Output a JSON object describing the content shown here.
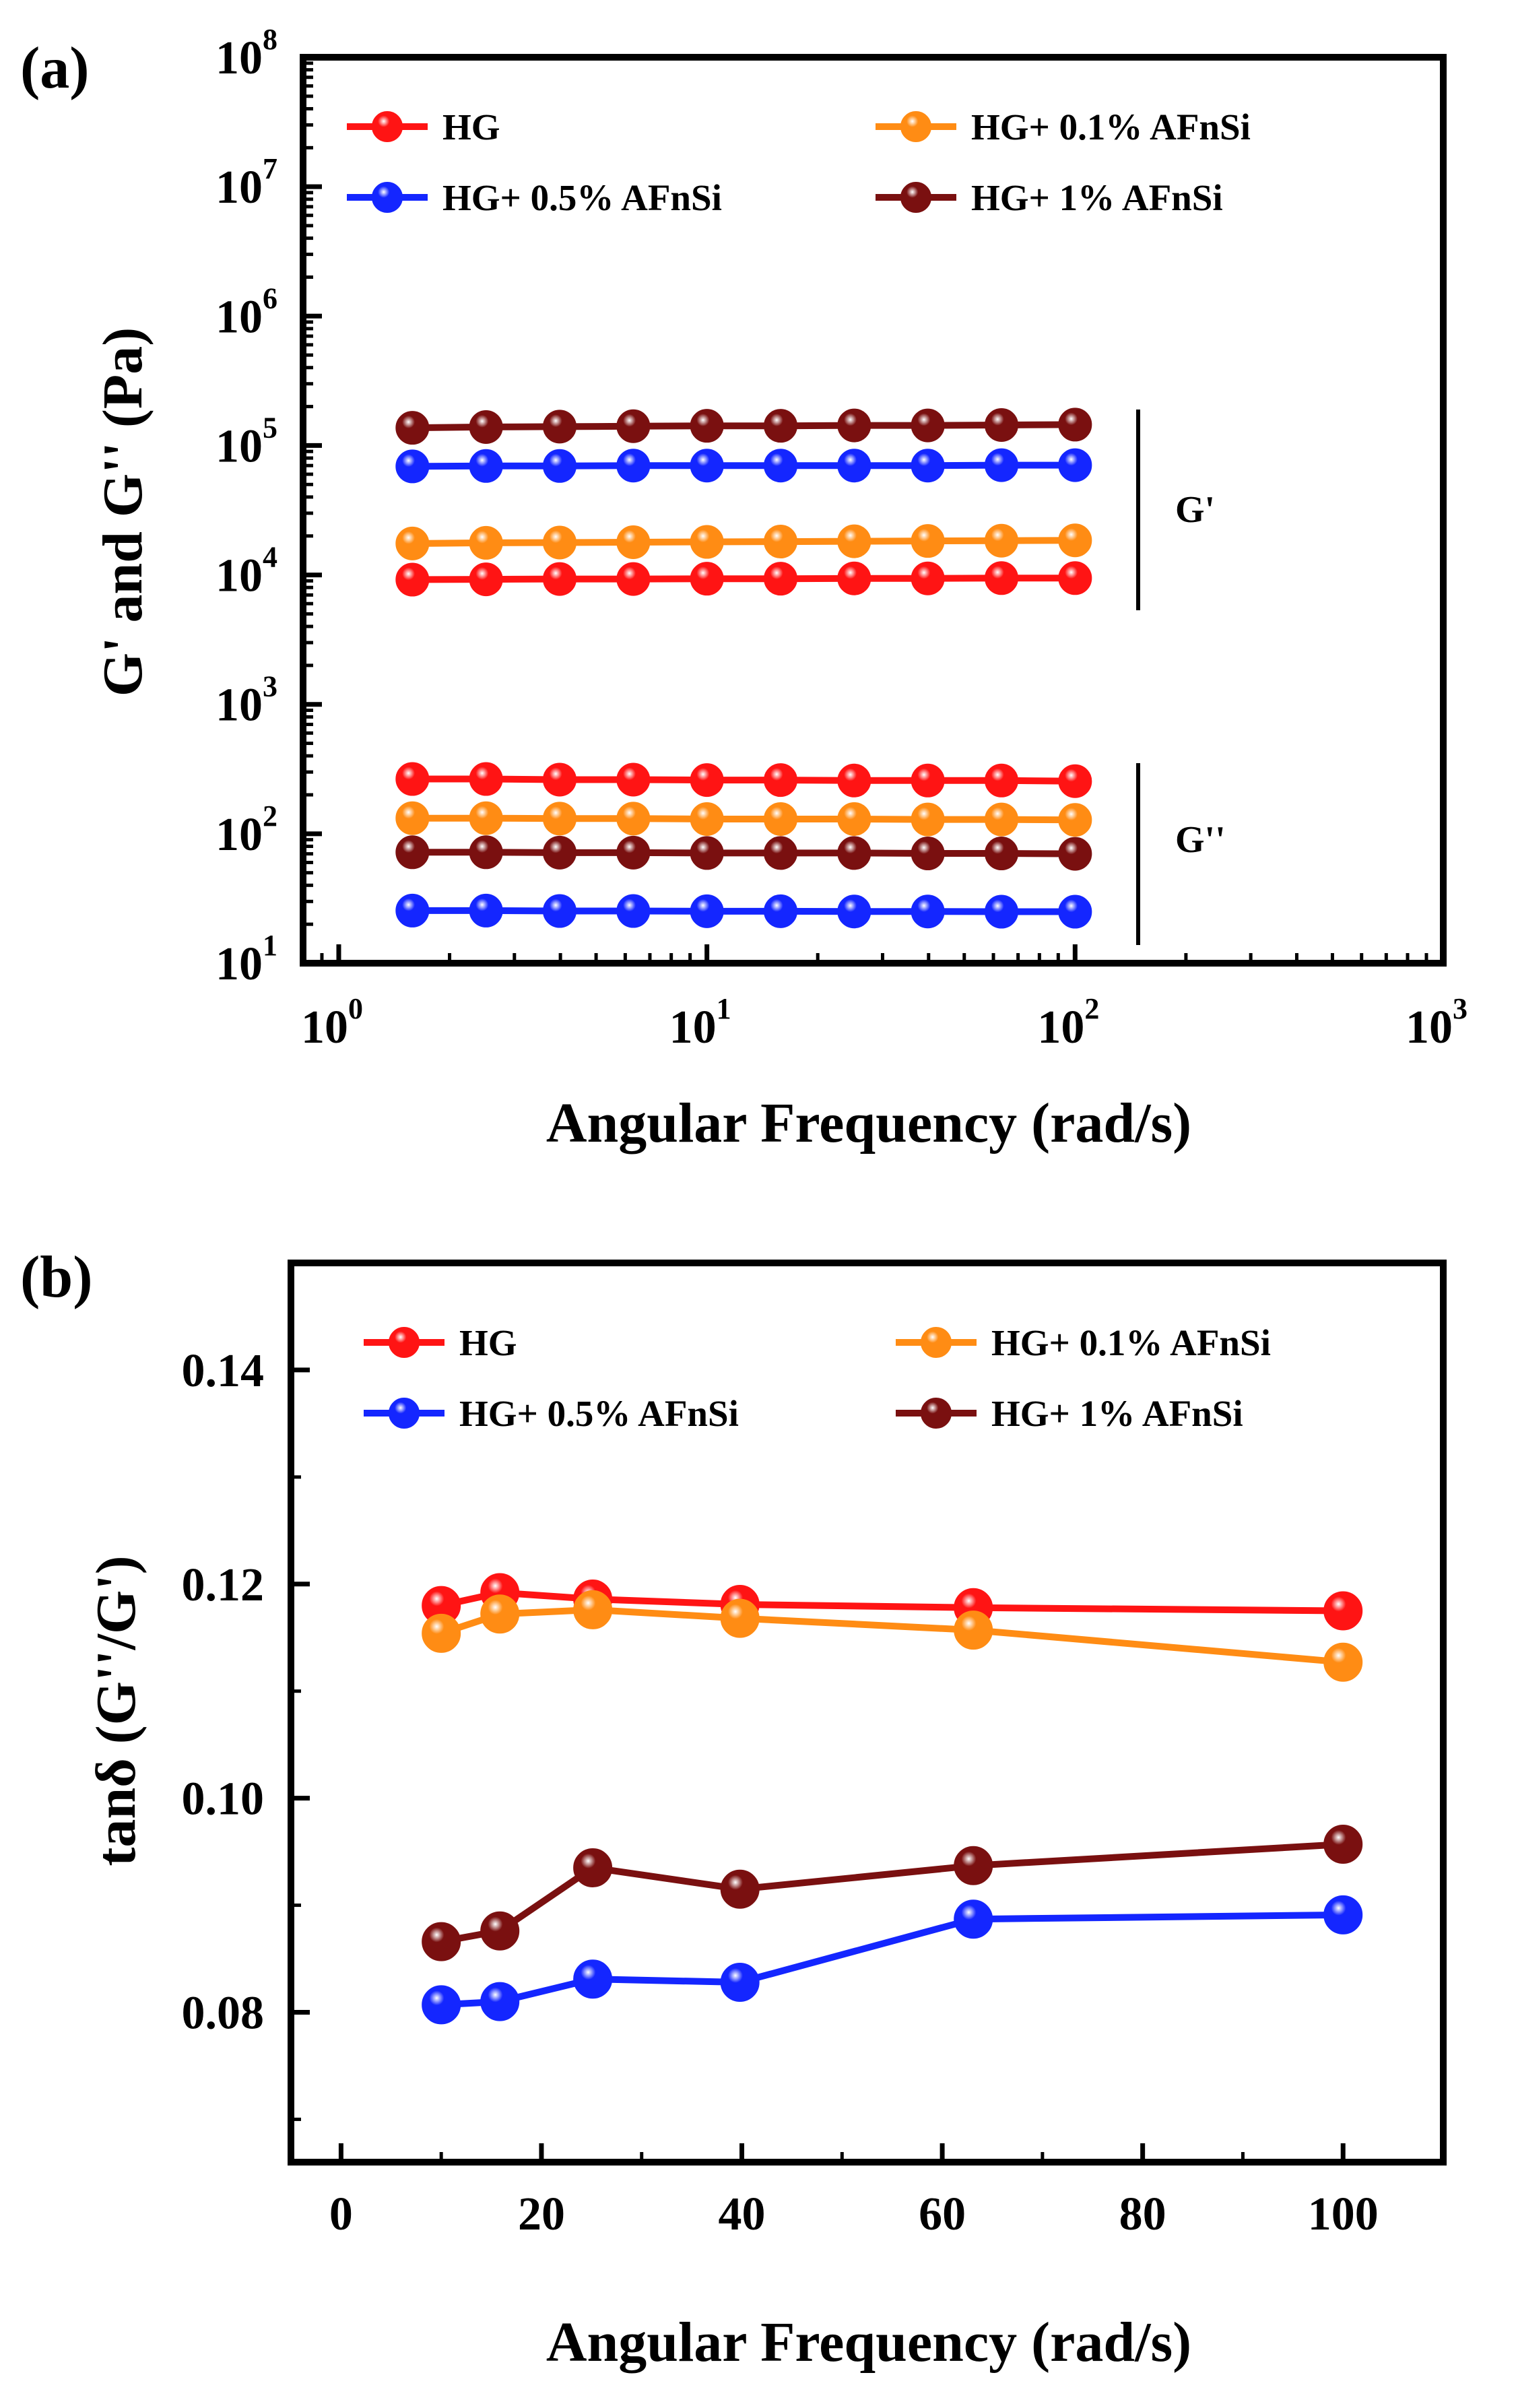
{
  "figure": {
    "colors": {
      "HG": "#ff1414",
      "HG+ 0.1% AFnSi": "#ff8c14",
      "HG+ 0.5% AFnSi": "#1426ff",
      "HG+ 1% AFnSi": "#7a1010"
    }
  },
  "chart_data": [
    {
      "panel_label": "(a)",
      "type": "line",
      "xscale": "log",
      "yscale": "log",
      "xlabel": "Angular Frequency (rad/s)",
      "ylabel": "G' and G'' (Pa)",
      "xlim": [
        0.8,
        1000
      ],
      "ylim": [
        10,
        100000000
      ],
      "xticks": [
        {
          "base": "10",
          "exp": "0",
          "value": 1
        },
        {
          "base": "10",
          "exp": "1",
          "value": 10
        },
        {
          "base": "10",
          "exp": "2",
          "value": 100
        },
        {
          "base": "10",
          "exp": "3",
          "value": 1000
        }
      ],
      "yticks": [
        {
          "base": "10",
          "exp": "1",
          "value": 10
        },
        {
          "base": "10",
          "exp": "2",
          "value": 100
        },
        {
          "base": "10",
          "exp": "3",
          "value": 1000
        },
        {
          "base": "10",
          "exp": "4",
          "value": 10000
        },
        {
          "base": "10",
          "exp": "5",
          "value": 100000
        },
        {
          "base": "10",
          "exp": "6",
          "value": 1000000
        },
        {
          "base": "10",
          "exp": "7",
          "value": 10000000
        },
        {
          "base": "10",
          "exp": "8",
          "value": 100000000
        }
      ],
      "legend_position": "top",
      "x": [
        1.585,
        2.512,
        3.981,
        6.31,
        10,
        15.85,
        25.12,
        39.81,
        63.1,
        100
      ],
      "series": [
        {
          "name": "HG",
          "group": "G'",
          "values": [
            9200,
            9250,
            9300,
            9300,
            9350,
            9350,
            9400,
            9400,
            9450,
            9450
          ]
        },
        {
          "name": "HG+ 0.1% AFnSi",
          "group": "G'",
          "values": [
            17500,
            17700,
            17800,
            17900,
            18000,
            18100,
            18200,
            18300,
            18400,
            18500
          ]
        },
        {
          "name": "HG+ 0.5% AFnSi",
          "group": "G'",
          "values": [
            69000,
            69500,
            69500,
            70000,
            70000,
            70000,
            70000,
            70000,
            70500,
            70500
          ]
        },
        {
          "name": "HG+ 1% AFnSi",
          "group": "G'",
          "values": [
            137000,
            139000,
            140000,
            141000,
            142000,
            142000,
            143000,
            143000,
            144000,
            145000
          ]
        },
        {
          "name": "HG",
          "group": "G''",
          "values": [
            265,
            265,
            262,
            262,
            260,
            260,
            258,
            258,
            258,
            255
          ]
        },
        {
          "name": "HG+ 0.1% AFnSi",
          "group": "G''",
          "values": [
            132,
            132,
            131,
            131,
            130,
            130,
            130,
            129,
            129,
            128
          ]
        },
        {
          "name": "HG+ 0.5% AFnSi",
          "group": "G''",
          "values": [
            25.5,
            25.5,
            25.3,
            25.3,
            25.2,
            25.2,
            25.1,
            25.1,
            25,
            25
          ]
        },
        {
          "name": "HG+ 1% AFnSi",
          "group": "G''",
          "values": [
            72,
            72,
            71.5,
            71.5,
            71,
            71,
            71,
            70.5,
            70.5,
            70
          ]
        }
      ],
      "annotations": [
        "G'",
        "G''"
      ]
    },
    {
      "panel_label": "(b)",
      "type": "line",
      "xlabel": "Angular Frequency (rad/s)",
      "ylabel": "tanδ (G''/G')",
      "xlim": [
        -5,
        110
      ],
      "ylim": [
        0.066,
        0.15
      ],
      "xticks": [
        "0",
        "20",
        "40",
        "60",
        "80",
        "100"
      ],
      "yticks": [
        "0.08",
        "0.10",
        "0.12",
        "0.14"
      ],
      "legend_position": "top",
      "x": [
        10,
        15.85,
        25.12,
        39.81,
        63.1,
        100
      ],
      "series": [
        {
          "name": "HG",
          "values": [
            0.118,
            0.1192,
            0.1186,
            0.1181,
            0.1178,
            0.1175
          ]
        },
        {
          "name": "HG+ 0.1% AFnSi",
          "values": [
            0.1154,
            0.1172,
            0.1176,
            0.1168,
            0.1157,
            0.1127
          ]
        },
        {
          "name": "HG+ 0.5% AFnSi",
          "values": [
            0.0807,
            0.081,
            0.0831,
            0.0828,
            0.0887,
            0.0891
          ]
        },
        {
          "name": "HG+ 1% AFnSi",
          "values": [
            0.0866,
            0.0876,
            0.0935,
            0.0915,
            0.0937,
            0.0957
          ]
        }
      ]
    }
  ]
}
